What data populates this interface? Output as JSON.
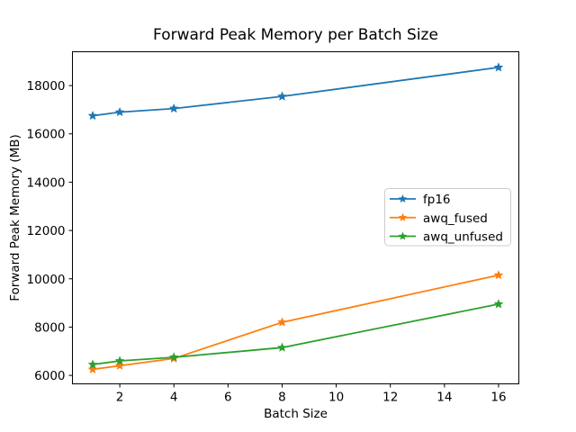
{
  "figure": {
    "background": "#ffffff"
  },
  "chart_data": {
    "type": "line",
    "title": "Forward Peak Memory per Batch Size",
    "xlabel": "Batch Size",
    "ylabel": "Forward Peak Memory (MB)",
    "x": [
      1,
      2,
      4,
      8,
      16
    ],
    "series": [
      {
        "name": "fp16",
        "color": "#1f77b4",
        "marker": "star",
        "values": [
          16750,
          16900,
          17050,
          17550,
          18750
        ]
      },
      {
        "name": "awq_fused",
        "color": "#ff7f0e",
        "marker": "star",
        "values": [
          6250,
          6400,
          6700,
          8200,
          10150
        ]
      },
      {
        "name": "awq_unfused",
        "color": "#2ca02c",
        "marker": "star",
        "values": [
          6450,
          6600,
          6750,
          7150,
          8950
        ]
      }
    ],
    "xlim": [
      0.25,
      16.75
    ],
    "ylim": [
      5650,
      19400
    ],
    "xticks": [
      2,
      4,
      6,
      8,
      10,
      12,
      14,
      16
    ],
    "yticks": [
      6000,
      8000,
      10000,
      12000,
      14000,
      16000,
      18000
    ],
    "grid": false,
    "legend": {
      "position": "center-right",
      "entries": [
        "fp16",
        "awq_fused",
        "awq_unfused"
      ]
    },
    "axis_color": "#000000",
    "legend_border_color": "#cccccc",
    "background": "#ffffff"
  }
}
